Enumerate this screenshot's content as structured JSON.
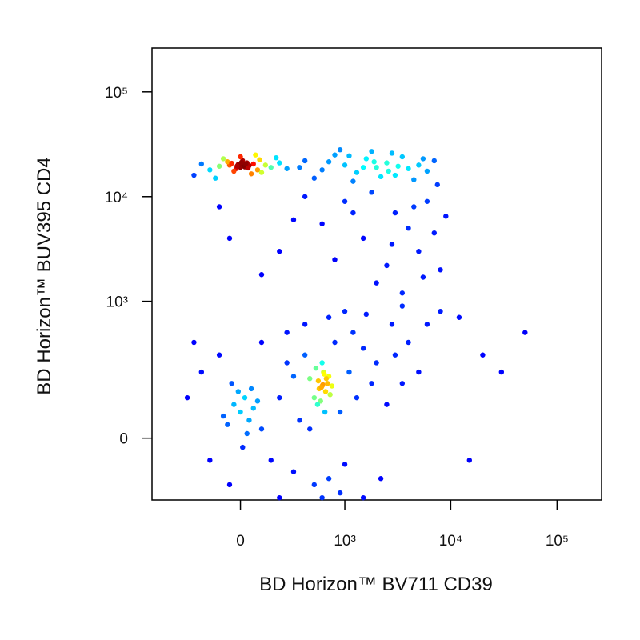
{
  "chart_data": {
    "type": "scatter",
    "xlabel": "BD Horizon™ BV711 CD39",
    "ylabel": "BD Horizon™ BUV395 CD4",
    "xscale": "biexponential",
    "yscale": "biexponential",
    "xlim": [
      -700,
      262144
    ],
    "ylim": [
      -180,
      262144
    ],
    "xticks": [
      0,
      {
        "value": 1000,
        "label": "10³"
      },
      {
        "value": 10000,
        "label": "10⁴"
      },
      {
        "value": 100000,
        "label": "10⁵"
      }
    ],
    "yticks": [
      0,
      {
        "value": 1000,
        "label": "10³"
      },
      {
        "value": 10000,
        "label": "10⁴"
      },
      {
        "value": 100000,
        "label": "10⁵"
      }
    ],
    "x": [
      -50,
      0,
      30,
      -20,
      60,
      10,
      -100,
      80,
      40,
      -60,
      120,
      -10,
      20,
      -30,
      90,
      150,
      -150,
      0,
      50,
      -80,
      200,
      -200,
      100,
      -5,
      15,
      25,
      -15,
      35,
      5,
      -40,
      250,
      -250,
      70,
      180,
      -120,
      400,
      600,
      800,
      1000,
      1300,
      1600,
      2000,
      2500,
      3000,
      3500,
      4000,
      5000,
      6000,
      7000,
      500,
      900,
      1200,
      1800,
      2200,
      2800,
      3200,
      4500,
      5500,
      350,
      700,
      1100,
      1500,
      1900,
      2600,
      7500,
      -100,
      300,
      1500,
      3000,
      5000,
      6000,
      800,
      2000,
      4000,
      200,
      1000,
      2500,
      7000,
      3500,
      600,
      4500,
      100,
      1200,
      5500,
      -50,
      8000,
      9000,
      2800,
      1800,
      400,
      600,
      550,
      650,
      700,
      500,
      620,
      580,
      680,
      520,
      720,
      600,
      640,
      560,
      660,
      610,
      590,
      630,
      540,
      750,
      450,
      0,
      -30,
      40,
      20,
      -60,
      60,
      -10,
      10,
      80,
      -80,
      30,
      -40,
      100,
      50,
      200,
      300,
      350,
      250,
      400,
      150,
      900,
      1100,
      1300,
      1500,
      1000,
      800,
      1200,
      1800,
      2000,
      2500,
      3000,
      3500,
      4000,
      900,
      700,
      500,
      300,
      400,
      700,
      1000,
      250,
      -100,
      -150,
      -200,
      -250,
      -300,
      5000,
      6000,
      8000,
      12000,
      20000,
      15000,
      30000,
      50000,
      1500,
      2200,
      600,
      200,
      2800,
      3500,
      1600,
      100,
      -50,
      450
    ],
    "values": [
      20000,
      19000,
      21000,
      18500,
      20500,
      22000,
      19500,
      18000,
      19800,
      21500,
      20000,
      20300,
      19200,
      17500,
      22500,
      19000,
      18000,
      24000,
      16500,
      23000,
      21000,
      20500,
      17000,
      20100,
      19900,
      20400,
      19600,
      18800,
      21200,
      20800,
      18500,
      16000,
      25000,
      23500,
      15000,
      22000,
      18000,
      25000,
      20000,
      17000,
      23000,
      19000,
      21000,
      16000,
      24000,
      18500,
      20000,
      17500,
      22000,
      15000,
      28000,
      14000,
      27000,
      15500,
      26000,
      19500,
      14500,
      23000,
      19000,
      21500,
      24500,
      19000,
      21500,
      17500,
      13000,
      8000,
      6000,
      4000,
      7000,
      3000,
      9000,
      2500,
      1500,
      5000,
      3000,
      9000,
      2200,
      4500,
      1200,
      5500,
      8000,
      1800,
      7000,
      1700,
      4000,
      2000,
      6500,
      3500,
      11000,
      10000,
      140,
      160,
      120,
      180,
      100,
      200,
      90,
      150,
      220,
      110,
      250,
      60,
      130,
      170,
      145,
      135,
      190,
      80,
      140,
      170,
      60,
      80,
      40,
      100,
      30,
      70,
      120,
      -20,
      90,
      50,
      10,
      150,
      20,
      130,
      100,
      180,
      40,
      250,
      300,
      -50,
      60,
      200,
      100,
      350,
      -60,
      400,
      500,
      150,
      250,
      80,
      300,
      150,
      400,
      -150,
      -100,
      -120,
      -80,
      600,
      700,
      800,
      500,
      300,
      -50,
      200,
      400,
      100,
      200,
      600,
      800,
      700,
      300,
      -50,
      200,
      500,
      -170,
      -100,
      -170,
      -170,
      600,
      900,
      750,
      400,
      -120,
      20
    ]
  }
}
